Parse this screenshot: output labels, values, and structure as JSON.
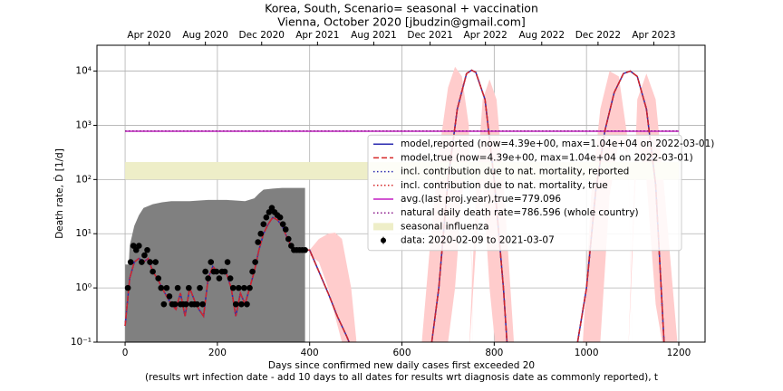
{
  "chart_data": {
    "type": "line",
    "title": "Korea, South, Scenario= seasonal + vaccination",
    "subtitle": "Vienna, October 2020 [jbudzin@gmail.com]",
    "xlabel": "Days since confirmed new daily cases first exceeded 20",
    "xlabel2": "(results wrt infection date - add 10 days to all dates for results wrt diagnosis date as commonly reported), t",
    "ylabel": "Death rate, Ḋ [1/d]",
    "log_y": true,
    "grid": true,
    "legend": "center right",
    "xlim": [
      -61,
      1257
    ],
    "ylim": [
      0.1,
      30000
    ],
    "xticks": [
      0,
      200,
      400,
      600,
      800,
      1000,
      1200
    ],
    "yticks": [
      {
        "value": 0.1,
        "label": "10⁻¹"
      },
      {
        "value": 1,
        "label": "10⁰"
      },
      {
        "value": 10,
        "label": "10¹"
      },
      {
        "value": 100,
        "label": "10²"
      },
      {
        "value": 1000,
        "label": "10³"
      },
      {
        "value": 10000,
        "label": "10⁴"
      }
    ],
    "x2ticks": [
      {
        "value": 52,
        "label": "Apr 2020"
      },
      {
        "value": 174,
        "label": "Aug 2020"
      },
      {
        "value": 296,
        "label": "Dec 2020"
      },
      {
        "value": 417,
        "label": "Apr 2021"
      },
      {
        "value": 539,
        "label": "Aug 2021"
      },
      {
        "value": 661,
        "label": "Dec 2021"
      },
      {
        "value": 781,
        "label": "Apr 2022"
      },
      {
        "value": 903,
        "label": "Aug 2022"
      },
      {
        "value": 1025,
        "label": "Dec 2022"
      },
      {
        "value": 1146,
        "label": "Apr 2023"
      }
    ],
    "x": [
      0,
      10,
      20,
      30,
      40,
      50,
      60,
      70,
      80,
      90,
      100,
      110,
      120,
      130,
      140,
      150,
      160,
      170,
      180,
      190,
      200,
      210,
      220,
      230,
      240,
      250,
      260,
      270,
      280,
      290,
      300,
      310,
      320,
      330,
      340,
      350,
      360,
      370,
      380,
      390,
      400,
      420,
      440,
      460,
      480,
      500,
      580,
      660,
      680,
      700,
      720,
      740,
      751,
      760,
      780,
      800,
      820,
      830,
      900,
      975,
      1000,
      1020,
      1040,
      1060,
      1080,
      1095,
      1110,
      1130,
      1150,
      1170
    ],
    "series": [
      {
        "name": "model,reported (now=4.39e+00, max=1.04e+04 on 2022-03-01)",
        "color": "#2b2bb0",
        "linestyle": "solid",
        "values": [
          0.2,
          1.5,
          3,
          3.5,
          3,
          3.5,
          2,
          1.5,
          1,
          0.7,
          0.5,
          0.4,
          0.8,
          0.3,
          1,
          0.6,
          0.4,
          0.3,
          1.5,
          2.5,
          2,
          2,
          1.8,
          1,
          0.3,
          0.8,
          0.5,
          1,
          2,
          5,
          10,
          15,
          20,
          18,
          14,
          9,
          6,
          5,
          5,
          5,
          5,
          2,
          0.8,
          0.3,
          0.13,
          0.05,
          null,
          0.05,
          1,
          100,
          2000,
          9000,
          10400,
          9500,
          3000,
          100,
          1,
          0.05,
          null,
          0.05,
          1,
          60,
          800,
          4000,
          9000,
          10000,
          8000,
          2000,
          80,
          0.05
        ]
      },
      {
        "name": "model,true (now=4.39e+00, max=1.04e+04 on 2022-03-01)",
        "color": "#d62728",
        "linestyle": "dashed",
        "values": [
          0.2,
          1.5,
          3,
          3.5,
          3,
          3.5,
          2,
          1.5,
          1,
          0.7,
          0.5,
          0.4,
          0.8,
          0.3,
          1,
          0.6,
          0.4,
          0.3,
          1.5,
          2.5,
          2,
          2,
          1.8,
          1,
          0.3,
          0.8,
          0.5,
          1,
          2,
          5,
          10,
          15,
          20,
          18,
          14,
          9,
          6,
          5,
          5,
          5,
          5,
          2,
          0.8,
          0.3,
          0.13,
          0.05,
          null,
          0.05,
          1,
          100,
          2000,
          9000,
          10400,
          9500,
          3000,
          100,
          1,
          0.05,
          null,
          0.05,
          1,
          60,
          800,
          4000,
          9000,
          10000,
          8000,
          2000,
          80,
          0.05
        ]
      },
      {
        "name": "incl. contribution due to nat. mortality, reported",
        "color": "#2b2bb0",
        "linestyle": "dotted",
        "values": [
          0.2,
          1.5,
          3,
          3.5,
          3,
          3.5,
          2,
          1.5,
          1,
          0.7,
          0.5,
          0.4,
          0.8,
          0.3,
          1,
          0.6,
          0.4,
          0.3,
          1.5,
          2.5,
          2,
          2,
          1.8,
          1,
          0.3,
          0.8,
          0.5,
          1,
          2,
          5,
          10,
          15,
          20,
          18,
          14,
          9,
          6,
          5,
          5,
          5,
          5,
          2,
          0.8,
          0.3,
          0.13,
          0.05,
          null,
          0.05,
          1,
          100,
          2000,
          9000,
          10400,
          9500,
          3000,
          100,
          1,
          0.05,
          null,
          0.05,
          1,
          60,
          800,
          4000,
          9000,
          10000,
          8000,
          2000,
          80,
          0.05
        ]
      },
      {
        "name": "incl. contribution due to nat. mortality, true",
        "color": "#d62728",
        "linestyle": "dotted",
        "values": [
          0.2,
          1.5,
          3,
          3.5,
          3,
          3.5,
          2,
          1.5,
          1,
          0.7,
          0.5,
          0.4,
          0.8,
          0.3,
          1,
          0.6,
          0.4,
          0.3,
          1.5,
          2.5,
          2,
          2,
          1.8,
          1,
          0.3,
          0.8,
          0.5,
          1,
          2,
          5,
          10,
          15,
          20,
          18,
          14,
          9,
          6,
          5,
          5,
          5,
          5,
          2,
          0.8,
          0.3,
          0.13,
          0.05,
          null,
          0.05,
          1,
          100,
          2000,
          9000,
          10400,
          9500,
          3000,
          100,
          1,
          0.05,
          null,
          0.05,
          1,
          60,
          800,
          4000,
          9000,
          10000,
          8000,
          2000,
          80,
          0.05
        ]
      }
    ],
    "hlines": [
      {
        "name": "avg.(last proj.year),true=779.096",
        "color": "#c41fc4",
        "linestyle": "solid",
        "value": 779.096,
        "xrange": [
          0,
          1200
        ]
      },
      {
        "name": "natural daily death rate=786.596 (whole country)",
        "color": "#8b1a8b",
        "linestyle": "dotted",
        "value": 786.596,
        "xrange": [
          0,
          1200
        ]
      }
    ],
    "seasonal_band": {
      "name": "seasonal influenza",
      "color": "#eeeec8",
      "range": [
        100,
        210
      ],
      "xrange": [
        0,
        1200
      ]
    },
    "data": {
      "name": "data: 2020-02-09 to 2021-03-07",
      "color": "#000000",
      "x": [
        6,
        12,
        18,
        24,
        30,
        36,
        42,
        48,
        54,
        60,
        66,
        72,
        78,
        84,
        90,
        96,
        102,
        108,
        114,
        120,
        126,
        132,
        138,
        144,
        150,
        156,
        162,
        168,
        174,
        180,
        186,
        192,
        198,
        204,
        210,
        216,
        222,
        228,
        234,
        240,
        246,
        252,
        258,
        264,
        270,
        276,
        282,
        288,
        294,
        300,
        306,
        312,
        318,
        324,
        330,
        336,
        342,
        348,
        354,
        360,
        366,
        372,
        378,
        384,
        390
      ],
      "values": [
        1,
        3,
        6,
        5,
        6,
        3,
        4,
        5,
        3,
        2,
        3,
        1.5,
        1,
        0.5,
        1,
        0.7,
        0.5,
        0.5,
        1,
        0.5,
        0.5,
        0.5,
        1,
        0.5,
        0.5,
        0.5,
        1,
        0.5,
        2,
        1.5,
        3,
        2,
        2,
        1.5,
        2,
        2,
        3,
        1.5,
        1,
        0.5,
        1,
        0.5,
        1,
        0.5,
        1,
        2,
        3,
        7,
        10,
        15,
        20,
        25,
        30,
        25,
        22,
        20,
        15,
        12,
        8,
        6,
        5,
        5,
        5,
        5,
        5
      ]
    },
    "error_band": {
      "color": "#808080",
      "x": [
        0,
        8,
        10,
        20,
        30,
        40,
        60,
        80,
        100,
        140,
        180,
        220,
        260,
        280,
        290,
        300,
        320,
        340,
        360,
        380,
        390
      ],
      "upper": [
        2.7,
        2.7,
        6,
        14,
        22,
        30,
        35,
        38,
        40,
        40,
        42,
        42,
        40,
        45,
        55,
        65,
        68,
        70,
        70,
        70,
        70
      ]
    },
    "uncertainty_bands": {
      "color": "#ffcccc",
      "bands": [
        {
          "x": [
            400,
            420,
            440,
            455,
            470,
            490,
            505
          ],
          "lower": [
            4,
            3,
            1,
            0.3,
            0.1,
            0.05,
            0.05
          ],
          "upper": [
            5,
            8,
            10,
            10.5,
            8,
            1,
            0.05
          ]
        },
        {
          "x": [
            640,
            660,
            680,
            700,
            715,
            730,
            745,
            755
          ],
          "lower": [
            0.05,
            0.05,
            0.05,
            0.1,
            1,
            50,
            300,
            0.05
          ],
          "upper": [
            0.05,
            5,
            300,
            5000,
            12000,
            8000,
            1000,
            0.05
          ]
        },
        {
          "x": [
            745,
            760,
            775,
            790,
            805,
            820,
            835,
            845
          ],
          "lower": [
            0.05,
            5,
            100,
            1,
            0.05,
            0.05,
            0.05,
            0.05
          ],
          "upper": [
            0.05,
            50,
            3000,
            7000,
            3000,
            100,
            1,
            0.05
          ]
        },
        {
          "x": [
            990,
            1010,
            1030,
            1050,
            1070,
            1090,
            1100
          ],
          "lower": [
            0.05,
            0.05,
            0.1,
            50,
            500,
            300,
            0.05
          ],
          "upper": [
            0.05,
            50,
            2000,
            10000,
            8000,
            500,
            0.05
          ]
        },
        {
          "x": [
            1090,
            1110,
            1130,
            1150,
            1170,
            1190,
            1200
          ],
          "lower": [
            0.05,
            500,
            100,
            0.5,
            0.05,
            0.05,
            0.05
          ],
          "upper": [
            0.05,
            3000,
            9000,
            3000,
            50,
            0.5,
            0.05
          ]
        }
      ]
    }
  }
}
